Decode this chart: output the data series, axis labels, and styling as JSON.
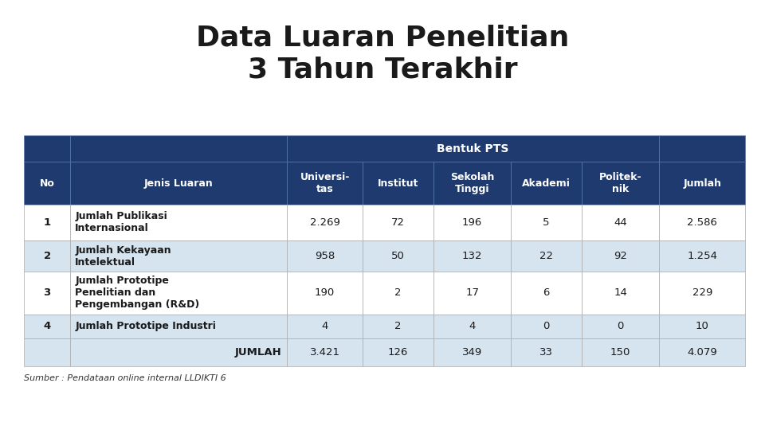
{
  "title": "Data Luaran Penelitian\n3 Tahun Terakhir",
  "title_fontsize": 26,
  "title_fontweight": "bold",
  "source_text": "Sumber : Pendataan online internal LLDIKTI 6",
  "header_dark_color": "#1e3a6e",
  "row_odd_color": "#ffffff",
  "row_even_color": "#d6e4f0",
  "header_text_color": "#ffffff",
  "body_text_color": "#1a1a1a",
  "bentuk_pts_label": "Bentuk PTS",
  "col_headers": [
    "No",
    "Jenis Luaran",
    "Universi-\ntas",
    "Institut",
    "Sekolah\nTinggi",
    "Akademi",
    "Politek-\nnik",
    "Jumlah"
  ],
  "rows": [
    {
      "no": "1",
      "jenis": "Jumlah Publikasi\nInternasional",
      "univ": "2.269",
      "inst": "72",
      "sek": "196",
      "akad": "5",
      "pol": "44",
      "jumlah": "2.586"
    },
    {
      "no": "2",
      "jenis": "Jumlah Kekayaan\nIntelektual",
      "univ": "958",
      "inst": "50",
      "sek": "132",
      "akad": "22",
      "pol": "92",
      "jumlah": "1.254"
    },
    {
      "no": "3",
      "jenis": "Jumlah Prototipe\nPenelitian dan\nPengembangan (R&D)",
      "univ": "190",
      "inst": "2",
      "sek": "17",
      "akad": "6",
      "pol": "14",
      "jumlah": "229"
    },
    {
      "no": "4",
      "jenis": "Jumlah Prototipe Industri",
      "univ": "4",
      "inst": "2",
      "sek": "4",
      "akad": "0",
      "pol": "0",
      "jumlah": "10"
    }
  ],
  "jumlah_row": {
    "label": "JUMLAH",
    "univ": "3.421",
    "inst": "126",
    "sek": "349",
    "akad": "33",
    "pol": "150",
    "jumlah": "4.079"
  },
  "fig_width": 9.6,
  "fig_height": 5.4,
  "dpi": 100
}
